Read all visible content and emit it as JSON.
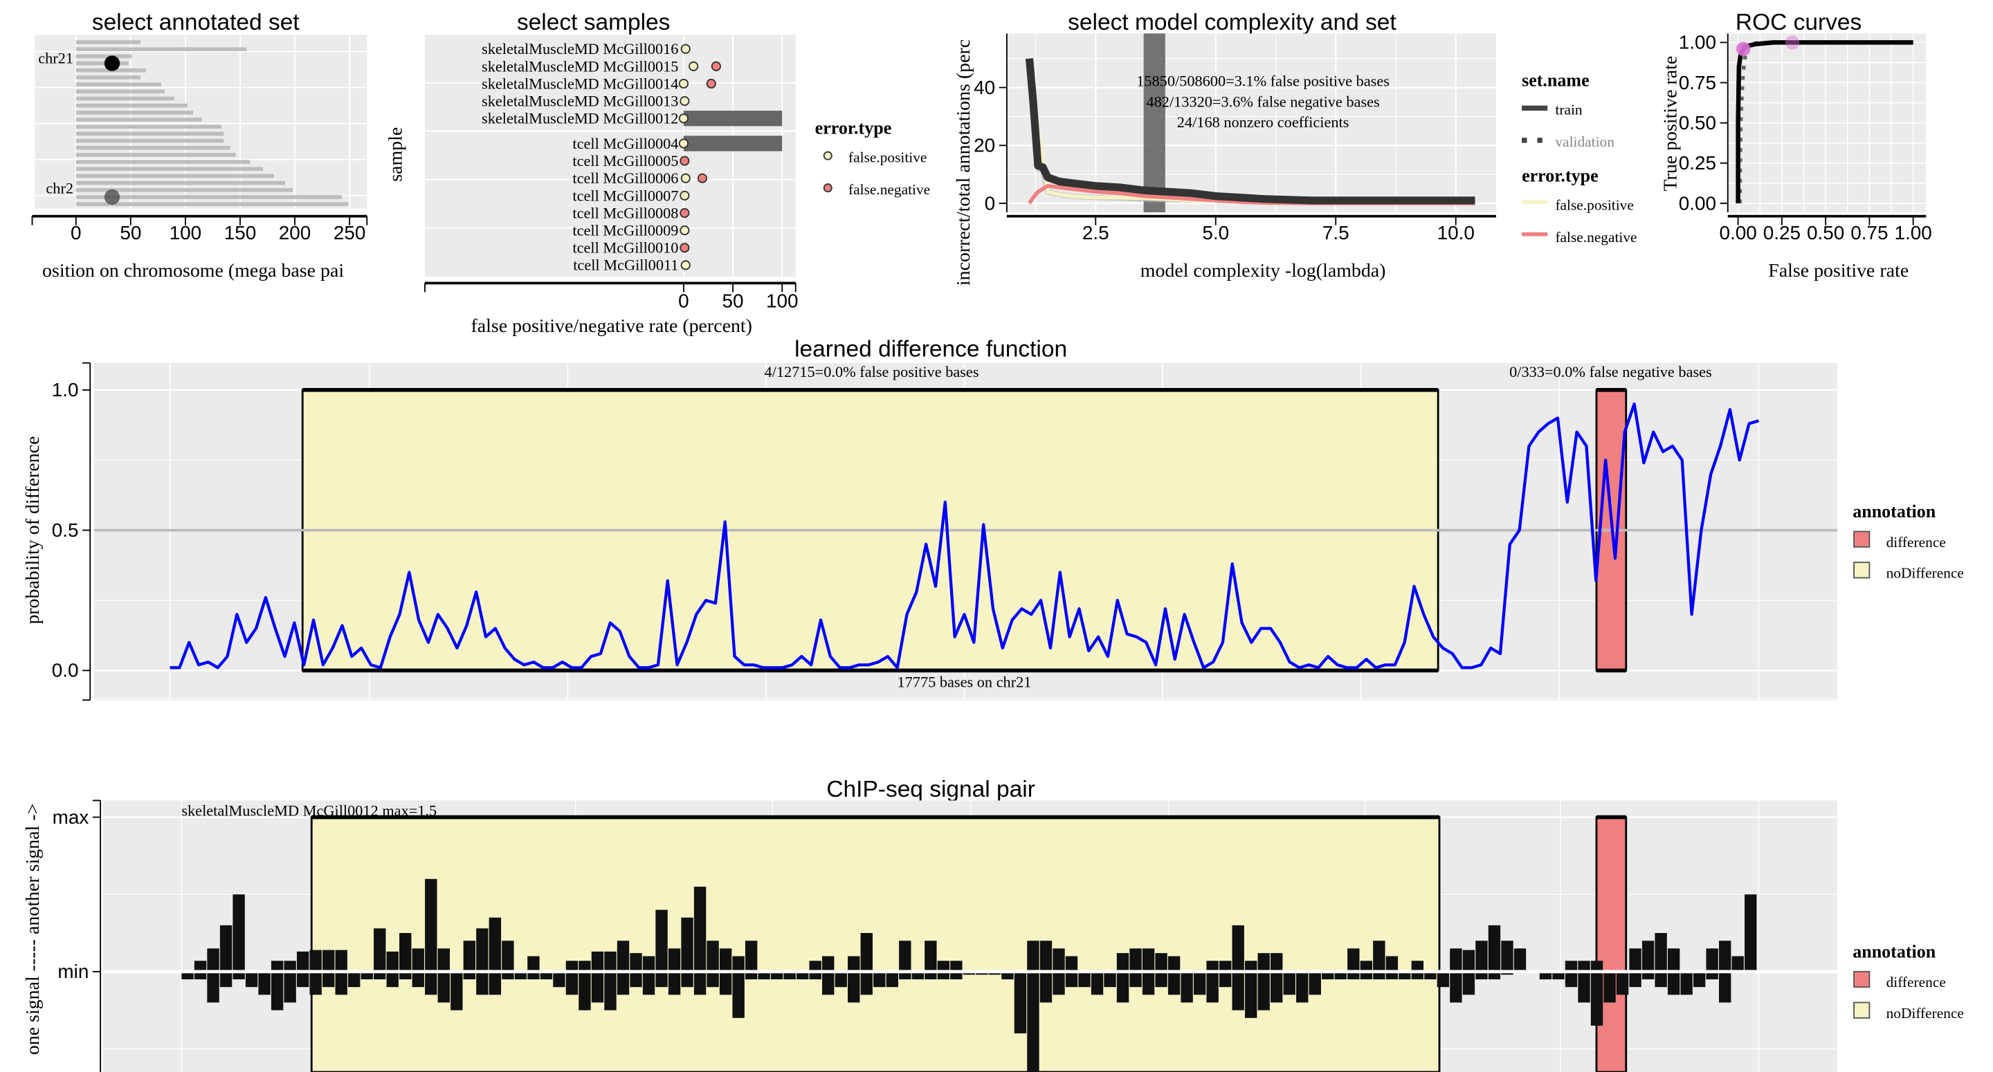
{
  "colors": {
    "panel_bg": "#ebebeb",
    "grid": "#ffffff",
    "false_positive": "#f6f3c4",
    "false_negative": "#f08080",
    "difference": "#f08080",
    "noDifference": "#f6f3c4",
    "prob_line": "#0000ff",
    "roc_point": "#da70d6",
    "selection": "#666666"
  },
  "chart_data": [
    {
      "id": "annotated-set",
      "type": "bar",
      "title": "select annotated set",
      "xlabel": "osition on chromosome (mega base pai",
      "ylabel": "",
      "xticks": [
        "0",
        "50",
        "100",
        "150",
        "200",
        "250"
      ],
      "xtick_values": [
        0,
        50,
        100,
        150,
        200,
        250
      ],
      "xlim": [
        -40,
        265
      ],
      "chromosome_lengths_mb": [
        59,
        156,
        51,
        48,
        64,
        59,
        78,
        81,
        90,
        102,
        107,
        115,
        133,
        135,
        135,
        141,
        146,
        159,
        171,
        181,
        191,
        198,
        243,
        249
      ],
      "labels": [
        {
          "label": "chr21",
          "row": 3,
          "position_mb": 33,
          "selected": true
        },
        {
          "label": "chr2",
          "row": 22,
          "position_mb": 33,
          "selected": false
        }
      ]
    },
    {
      "id": "samples",
      "type": "scatter",
      "title": "select samples",
      "xlabel": "false positive/negative rate (percent)",
      "ylabel": "sample",
      "xticks": [
        "0",
        "50",
        "100"
      ],
      "xtick_values": [
        0,
        50,
        100
      ],
      "samples": [
        {
          "label": "skeletalMuscleMD McGill0016",
          "fp": 2,
          "fn": null,
          "selected": false,
          "group": 0
        },
        {
          "label": "skeletalMuscleMD McGill0015",
          "fp": 10,
          "fn": 33,
          "selected": false,
          "group": 0
        },
        {
          "label": "skeletalMuscleMD McGill0014",
          "fp": 0,
          "fn": 28,
          "selected": false,
          "group": 0
        },
        {
          "label": "skeletalMuscleMD McGill0013",
          "fp": 1,
          "fn": null,
          "selected": false,
          "group": 0
        },
        {
          "label": "skeletalMuscleMD McGill0012",
          "fp": 0,
          "fn": null,
          "selected": true,
          "group": 0,
          "bar": 100
        },
        {
          "label": "tcell McGill0004",
          "fp": 0,
          "fn": null,
          "selected": true,
          "group": 1,
          "bar": 100
        },
        {
          "label": "tcell McGill0005",
          "fp": null,
          "fn": 1,
          "selected": false,
          "group": 1
        },
        {
          "label": "tcell McGill0006",
          "fp": 2,
          "fn": 19,
          "selected": false,
          "group": 1
        },
        {
          "label": "tcell McGill0007",
          "fp": 1,
          "fn": null,
          "selected": false,
          "group": 1
        },
        {
          "label": "tcell McGill0008",
          "fp": null,
          "fn": 1,
          "selected": false,
          "group": 1
        },
        {
          "label": "tcell McGill0009",
          "fp": 1,
          "fn": null,
          "selected": false,
          "group": 1
        },
        {
          "label": "tcell McGill0010",
          "fp": null,
          "fn": 1,
          "selected": false,
          "group": 1
        },
        {
          "label": "tcell McGill0011",
          "fp": 2,
          "fn": null,
          "selected": false,
          "group": 1
        }
      ],
      "legend": {
        "title": "error.type",
        "items": [
          "false.positive",
          "false.negative"
        ]
      }
    },
    {
      "id": "model-complexity",
      "type": "line",
      "title": "select model complexity and set",
      "xlabel": "model complexity -log(lambda)",
      "ylabel": "incorrect/total annotations (perc",
      "xticks": [
        "2.5",
        "5.0",
        "7.5",
        "10.0"
      ],
      "xtick_values": [
        2.5,
        5,
        7.5,
        10
      ],
      "yticks": [
        "0",
        "20",
        "40"
      ],
      "ytick_values": [
        0,
        20,
        40
      ],
      "x": [
        1.12,
        1.2,
        1.3,
        1.4,
        1.5,
        1.75,
        2,
        2.5,
        3,
        3.5,
        4,
        4.5,
        5,
        5.5,
        6,
        7,
        8,
        9,
        10,
        10.4
      ],
      "series": [
        {
          "name": "validation",
          "values": [
            49,
            34,
            12,
            11,
            4,
            3,
            2.5,
            2,
            1.8,
            1.5,
            1.3,
            1.1,
            1,
            0.8,
            0.8,
            0.7,
            0.7,
            0.7,
            0.7,
            0.7
          ]
        },
        {
          "name": "false.positive",
          "values": [
            50,
            40,
            25,
            15,
            4,
            3,
            2.5,
            2,
            2,
            1.8,
            1.5,
            1,
            0.8,
            0.6,
            0.5,
            0.3,
            0.3,
            0.3,
            0.3,
            0.3
          ]
        },
        {
          "name": "false.negative",
          "values": [
            0,
            2,
            4,
            5,
            6,
            5.5,
            5,
            4,
            3.5,
            2.5,
            2,
            1.5,
            1,
            0.5,
            0.2,
            0,
            0,
            0,
            0,
            0
          ]
        },
        {
          "name": "train",
          "values": [
            50,
            35,
            13,
            12.5,
            9,
            7.5,
            7,
            6,
            5.5,
            4.5,
            4,
            3.5,
            2.5,
            2,
            1.5,
            1,
            1,
            1,
            1,
            1
          ]
        }
      ],
      "selected_range": [
        3.5,
        3.95
      ],
      "annotations": [
        "15850/508600=3.1% false positive bases",
        "482/13320=3.6% false negative bases",
        "24/168 nonzero coefficients"
      ],
      "legend": {
        "set_title": "set.name",
        "set_items": [
          "train",
          "validation"
        ],
        "error_title": "error.type",
        "error_items": [
          "false.positive",
          "false.negative"
        ]
      }
    },
    {
      "id": "roc",
      "type": "line",
      "title": "ROC curves",
      "xlabel": "False positive rate",
      "ylabel": "True positive rate",
      "xticks": [
        "0.00",
        "0.25",
        "0.50",
        "0.75",
        "1.00"
      ],
      "xtick_values": [
        0,
        0.25,
        0.5,
        0.75,
        1
      ],
      "yticks": [
        "0.00",
        "0.25",
        "0.50",
        "0.75",
        "1.00"
      ],
      "ytick_values": [
        0,
        0.25,
        0.5,
        0.75,
        1
      ],
      "train": [
        [
          0.0,
          0.0
        ],
        [
          0.0,
          0.5
        ],
        [
          0.005,
          0.85
        ],
        [
          0.015,
          0.93
        ],
        [
          0.04,
          0.975
        ],
        [
          0.1,
          0.99
        ],
        [
          0.2,
          1.0
        ],
        [
          1.0,
          1.0
        ]
      ],
      "validation": [
        [
          0.01,
          0.0
        ],
        [
          0.015,
          0.5
        ],
        [
          0.025,
          0.75
        ],
        [
          0.035,
          0.88
        ],
        [
          0.05,
          0.97
        ],
        [
          0.1,
          0.995
        ],
        [
          0.2,
          1.0
        ]
      ],
      "points": [
        [
          0.03,
          0.96
        ],
        [
          0.31,
          1.0
        ]
      ]
    },
    {
      "id": "difference-function",
      "type": "line",
      "title": "learned difference function",
      "ylabel": "probability of difference",
      "yticks": [
        "0.0",
        "0.5",
        "1.0"
      ],
      "ytick_values": [
        0,
        0.5,
        1
      ],
      "threshold": 0.5,
      "annotations": {
        "fp": "4/12715=0.0% false positive bases",
        "fn": "0/333=0.0% false negative bases",
        "bases": "17775 bases on chr21"
      },
      "values": [
        0.01,
        0.01,
        0.1,
        0.02,
        0.03,
        0.01,
        0.05,
        0.2,
        0.1,
        0.15,
        0.26,
        0.15,
        0.05,
        0.17,
        0.02,
        0.18,
        0.02,
        0.08,
        0.16,
        0.05,
        0.08,
        0.02,
        0.01,
        0.12,
        0.2,
        0.35,
        0.18,
        0.1,
        0.2,
        0.15,
        0.08,
        0.16,
        0.28,
        0.12,
        0.15,
        0.08,
        0.04,
        0.02,
        0.03,
        0.01,
        0.01,
        0.03,
        0.01,
        0.01,
        0.05,
        0.06,
        0.17,
        0.14,
        0.05,
        0.01,
        0.01,
        0.02,
        0.32,
        0.02,
        0.1,
        0.2,
        0.25,
        0.24,
        0.53,
        0.05,
        0.02,
        0.02,
        0.01,
        0.01,
        0.01,
        0.02,
        0.05,
        0.02,
        0.18,
        0.05,
        0.01,
        0.01,
        0.02,
        0.02,
        0.03,
        0.05,
        0.01,
        0.2,
        0.28,
        0.45,
        0.3,
        0.6,
        0.12,
        0.2,
        0.1,
        0.52,
        0.22,
        0.08,
        0.18,
        0.22,
        0.2,
        0.25,
        0.08,
        0.35,
        0.12,
        0.22,
        0.07,
        0.12,
        0.05,
        0.25,
        0.13,
        0.12,
        0.1,
        0.02,
        0.22,
        0.04,
        0.2,
        0.1,
        0.01,
        0.03,
        0.1,
        0.38,
        0.17,
        0.1,
        0.15,
        0.15,
        0.1,
        0.03,
        0.01,
        0.02,
        0.01,
        0.05,
        0.02,
        0.01,
        0.01,
        0.04,
        0.01,
        0.02,
        0.02,
        0.1,
        0.3,
        0.2,
        0.12,
        0.08,
        0.06,
        0.01,
        0.01,
        0.02,
        0.08,
        0.06,
        0.45,
        0.5,
        0.8,
        0.85,
        0.88,
        0.9,
        0.6,
        0.85,
        0.8,
        0.32,
        0.75,
        0.4,
        0.85,
        0.95,
        0.74,
        0.85,
        0.78,
        0.8,
        0.75,
        0.2,
        0.5,
        0.7,
        0.8,
        0.93,
        0.75,
        0.88,
        0.89
      ],
      "legend": {
        "title": "annotation",
        "items": [
          "difference",
          "noDifference"
        ]
      }
    },
    {
      "id": "chipseq-pair",
      "type": "bar",
      "title": "ChIP-seq signal pair",
      "ylabel": "one signal ----- another signal ->",
      "yticks": [
        "max",
        "min"
      ],
      "sample_label": "skeletalMuscleMD McGill0012 max=1.5",
      "another_signal": [
        0,
        0.07,
        0.15,
        0.3,
        0.5,
        0,
        0,
        0.07,
        0.07,
        0.13,
        0.14,
        0.14,
        0.14,
        0,
        0,
        0.28,
        0.13,
        0.25,
        0.15,
        0.6,
        0.15,
        0,
        0.2,
        0.28,
        0.35,
        0.2,
        0,
        0.1,
        0,
        0,
        0.07,
        0.07,
        0.13,
        0.13,
        0.2,
        0.12,
        0.1,
        0.4,
        0.15,
        0.35,
        0.55,
        0.2,
        0.15,
        0.1,
        0.2,
        0,
        0,
        0,
        0,
        0.07,
        0.1,
        0,
        0.1,
        0.25,
        0,
        0,
        0.2,
        0,
        0.2,
        0.07,
        0.07,
        0,
        0,
        0,
        0,
        0,
        0.2,
        0.2,
        0.15,
        0.1,
        0,
        0,
        0,
        0.12,
        0.15,
        0.15,
        0.12,
        0.1,
        0,
        0,
        0.07,
        0.07,
        0.3,
        0.07,
        0.12,
        0.12,
        0,
        0,
        0,
        0,
        0,
        0.15,
        0.07,
        0.2,
        0.1,
        0,
        0.07,
        0,
        0,
        0.15,
        0.14,
        0.2,
        0.3,
        0.2,
        0.15,
        0,
        0,
        0,
        0.07,
        0.07,
        0.07,
        0,
        0,
        0.15,
        0.2,
        0.25,
        0.15,
        0,
        0,
        0.15,
        0.2,
        0.1,
        0.5
      ],
      "one_signal": [
        0.05,
        0.05,
        0.2,
        0.1,
        0.05,
        0.1,
        0.15,
        0.25,
        0.2,
        0.1,
        0.15,
        0.1,
        0.15,
        0.1,
        0.05,
        0.05,
        0.1,
        0.05,
        0.1,
        0.15,
        0.2,
        0.25,
        0.05,
        0.15,
        0.15,
        0.05,
        0.05,
        0.05,
        0.05,
        0.1,
        0.15,
        0.25,
        0.2,
        0.25,
        0.15,
        0.1,
        0.15,
        0.1,
        0.15,
        0.1,
        0.15,
        0.1,
        0.15,
        0.3,
        0.05,
        0.05,
        0.05,
        0.05,
        0.05,
        0.05,
        0.15,
        0.1,
        0.2,
        0.15,
        0.1,
        0.1,
        0.05,
        0.05,
        0.05,
        0.05,
        0.05,
        0.02,
        0.02,
        0.02,
        0.05,
        0.4,
        0.8,
        0.2,
        0.15,
        0.1,
        0.1,
        0.15,
        0.1,
        0.2,
        0.1,
        0.15,
        0.1,
        0.15,
        0.2,
        0.15,
        0.2,
        0.1,
        0.25,
        0.3,
        0.25,
        0.2,
        0.15,
        0.2,
        0.15,
        0.05,
        0.05,
        0.05,
        0.05,
        0.05,
        0.05,
        0.05,
        0.05,
        0.05,
        0.1,
        0.2,
        0.15,
        0.05,
        0.05,
        0.02,
        0,
        0,
        0.05,
        0.05,
        0.1,
        0.2,
        0.35,
        0.2,
        0.15,
        0.1,
        0.05,
        0.1,
        0.15,
        0.15,
        0.1,
        0.05,
        0.2
      ],
      "legend": {
        "title": "annotation",
        "items": [
          "difference",
          "noDifference"
        ]
      }
    }
  ]
}
